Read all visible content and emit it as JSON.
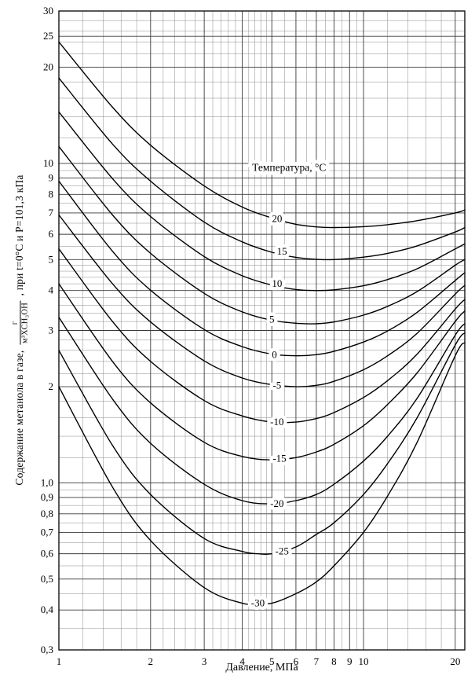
{
  "chart_data": {
    "type": "line",
    "title": "",
    "xlabel": "Давление, МПа",
    "ylabel": "Содержание метанола в газе, г/м³ХСН₃ОН, при t=0°C и P=101,3 кПа",
    "ylabel_prefix": "Содержание метанола в газе,",
    "ylabel_frac_num": "г",
    "ylabel_frac_den": "м³ХСН₃ОН",
    "ylabel_suffix": ", при t=0°C и P=101,3 кПа",
    "legend_title": "Температура, °С",
    "legend_pos": [
      5.7,
      9.7
    ],
    "x_scale": "log",
    "y_scale": "log",
    "xlim": [
      1,
      21.5
    ],
    "ylim": [
      0.3,
      30
    ],
    "grid": true,
    "colors": {
      "curve": "#000000",
      "grid_minor": "#8a8a8a",
      "grid_major": "#3a3a3a",
      "border": "#000000"
    },
    "x_ticks": [
      {
        "v": 1,
        "label": "1"
      },
      {
        "v": 2,
        "label": "2"
      },
      {
        "v": 3,
        "label": "3"
      },
      {
        "v": 4,
        "label": "4"
      },
      {
        "v": 5,
        "label": "5"
      },
      {
        "v": 6,
        "label": "6"
      },
      {
        "v": 7,
        "label": "7"
      },
      {
        "v": 8,
        "label": "8"
      },
      {
        "v": 9,
        "label": "9"
      },
      {
        "v": 10,
        "label": "10"
      },
      {
        "v": 20,
        "label": "20"
      }
    ],
    "y_ticks": [
      {
        "v": 30,
        "label": "30"
      },
      {
        "v": 25,
        "label": "25"
      },
      {
        "v": 20,
        "label": "20"
      },
      {
        "v": 10,
        "label": "10"
      },
      {
        "v": 9,
        "label": "9"
      },
      {
        "v": 8,
        "label": "8"
      },
      {
        "v": 7,
        "label": "7"
      },
      {
        "v": 6,
        "label": "6"
      },
      {
        "v": 5,
        "label": "5"
      },
      {
        "v": 4,
        "label": "4"
      },
      {
        "v": 3,
        "label": "3"
      },
      {
        "v": 2,
        "label": "2"
      },
      {
        "v": 1,
        "label": "1,0"
      },
      {
        "v": 0.9,
        "label": "0,9"
      },
      {
        "v": 0.8,
        "label": "0,8"
      },
      {
        "v": 0.7,
        "label": "0,7"
      },
      {
        "v": 0.6,
        "label": "0,6"
      },
      {
        "v": 0.5,
        "label": "0,5"
      },
      {
        "v": 0.4,
        "label": "0,4"
      },
      {
        "v": 0.3,
        "label": "0,3"
      }
    ],
    "x_minor": [
      1.2,
      1.4,
      1.6,
      1.8,
      2.2,
      2.4,
      2.6,
      2.8,
      3.2,
      3.4,
      3.6,
      3.8,
      4.2,
      4.4,
      4.6,
      4.8,
      5.5,
      6.5,
      7.5,
      8.5,
      9.5,
      12,
      14,
      16,
      18
    ],
    "y_minor": [
      0.35,
      0.45,
      0.55,
      0.65,
      0.75,
      0.85,
      0.95,
      1.2,
      1.4,
      1.6,
      1.8,
      2.2,
      2.4,
      2.6,
      2.8,
      3.2,
      3.4,
      3.6,
      3.8,
      4.2,
      4.4,
      4.6,
      4.8,
      5.5,
      6.5,
      7.5,
      8.5,
      9.5,
      12,
      14,
      16,
      18,
      22,
      24,
      26,
      28
    ],
    "series": [
      {
        "name": "20",
        "label_pos": [
          5.2,
          6.7
        ],
        "points": [
          [
            1,
            24
          ],
          [
            1.5,
            15.0
          ],
          [
            2,
            11.4
          ],
          [
            3,
            8.5
          ],
          [
            4,
            7.3
          ],
          [
            5,
            6.75
          ],
          [
            6,
            6.45
          ],
          [
            7,
            6.33
          ],
          [
            8,
            6.3
          ],
          [
            10,
            6.34
          ],
          [
            12,
            6.43
          ],
          [
            15,
            6.62
          ],
          [
            20,
            7.0
          ],
          [
            21.5,
            7.15
          ]
        ]
      },
      {
        "name": "15",
        "label_pos": [
          5.4,
          5.3
        ],
        "points": [
          [
            1,
            18.5
          ],
          [
            1.5,
            11.5
          ],
          [
            2,
            8.8
          ],
          [
            3,
            6.55
          ],
          [
            4,
            5.68
          ],
          [
            5,
            5.27
          ],
          [
            6,
            5.08
          ],
          [
            7,
            5.01
          ],
          [
            8,
            5.0
          ],
          [
            10,
            5.09
          ],
          [
            12,
            5.23
          ],
          [
            15,
            5.52
          ],
          [
            20,
            6.1
          ],
          [
            21.5,
            6.3
          ]
        ]
      },
      {
        "name": "10",
        "label_pos": [
          5.2,
          4.2
        ],
        "points": [
          [
            1,
            14.5
          ],
          [
            1.5,
            8.96
          ],
          [
            2,
            6.82
          ],
          [
            3,
            5.11
          ],
          [
            4,
            4.45
          ],
          [
            5,
            4.16
          ],
          [
            6,
            4.03
          ],
          [
            7,
            4.0
          ],
          [
            8,
            4.02
          ],
          [
            10,
            4.14
          ],
          [
            12,
            4.33
          ],
          [
            15,
            4.68
          ],
          [
            20,
            5.4
          ],
          [
            21.5,
            5.6
          ]
        ]
      },
      {
        "name": "5",
        "label_pos": [
          5.0,
          3.25
        ],
        "points": [
          [
            1,
            11.3
          ],
          [
            1.5,
            6.9
          ],
          [
            2,
            5.23
          ],
          [
            3,
            3.92
          ],
          [
            4,
            3.43
          ],
          [
            5,
            3.23
          ],
          [
            6,
            3.16
          ],
          [
            7,
            3.15
          ],
          [
            8,
            3.19
          ],
          [
            10,
            3.35
          ],
          [
            12,
            3.57
          ],
          [
            15,
            3.97
          ],
          [
            20,
            4.8
          ],
          [
            21.5,
            5.0
          ]
        ]
      },
      {
        "name": "0",
        "label_pos": [
          5.1,
          2.52
        ],
        "points": [
          [
            1,
            8.8
          ],
          [
            1.5,
            5.31
          ],
          [
            2,
            4.01
          ],
          [
            3,
            3.02
          ],
          [
            4,
            2.67
          ],
          [
            5,
            2.53
          ],
          [
            6,
            2.5
          ],
          [
            7,
            2.52
          ],
          [
            8,
            2.58
          ],
          [
            10,
            2.76
          ],
          [
            12,
            2.99
          ],
          [
            15,
            3.42
          ],
          [
            20,
            4.3
          ],
          [
            21.5,
            4.55
          ]
        ]
      },
      {
        "name": "-5",
        "label_pos": [
          5.2,
          2.02
        ],
        "points": [
          [
            1,
            6.9
          ],
          [
            1.5,
            4.2
          ],
          [
            2,
            3.19
          ],
          [
            3,
            2.41
          ],
          [
            4,
            2.13
          ],
          [
            5,
            2.03
          ],
          [
            6,
            2.0
          ],
          [
            7,
            2.02
          ],
          [
            8,
            2.08
          ],
          [
            10,
            2.26
          ],
          [
            12,
            2.5
          ],
          [
            15,
            2.94
          ],
          [
            20,
            3.9
          ],
          [
            21.5,
            4.15
          ]
        ]
      },
      {
        "name": "-10",
        "label_pos": [
          5.2,
          1.55
        ],
        "points": [
          [
            1,
            5.4
          ],
          [
            1.5,
            3.2
          ],
          [
            2,
            2.4
          ],
          [
            3,
            1.81
          ],
          [
            4,
            1.62
          ],
          [
            5,
            1.55
          ],
          [
            6,
            1.55
          ],
          [
            7,
            1.59
          ],
          [
            8,
            1.66
          ],
          [
            10,
            1.85
          ],
          [
            12,
            2.09
          ],
          [
            15,
            2.53
          ],
          [
            20,
            3.5
          ],
          [
            21.5,
            3.75
          ]
        ]
      },
      {
        "name": "-15",
        "label_pos": [
          5.3,
          1.19
        ],
        "points": [
          [
            1,
            4.2
          ],
          [
            1.5,
            2.4
          ],
          [
            2,
            1.78
          ],
          [
            3,
            1.34
          ],
          [
            4,
            1.21
          ],
          [
            5,
            1.18
          ],
          [
            6,
            1.2
          ],
          [
            7,
            1.25
          ],
          [
            8,
            1.32
          ],
          [
            10,
            1.51
          ],
          [
            12,
            1.76
          ],
          [
            15,
            2.21
          ],
          [
            20,
            3.2
          ],
          [
            21.5,
            3.45
          ]
        ]
      },
      {
        "name": "-20",
        "label_pos": [
          5.2,
          0.86
        ],
        "points": [
          [
            1,
            3.3
          ],
          [
            1.5,
            1.83
          ],
          [
            2,
            1.33
          ],
          [
            3,
            0.99
          ],
          [
            4,
            0.88
          ],
          [
            5,
            0.86
          ],
          [
            6,
            0.88
          ],
          [
            7,
            0.92
          ],
          [
            8,
            0.99
          ],
          [
            10,
            1.17
          ],
          [
            12,
            1.4
          ],
          [
            15,
            1.84
          ],
          [
            20,
            2.9
          ],
          [
            21.5,
            3.15
          ]
        ]
      },
      {
        "name": "-25",
        "label_pos": [
          5.4,
          0.61
        ],
        "points": [
          [
            1,
            2.6
          ],
          [
            1.5,
            1.31
          ],
          [
            2,
            0.92
          ],
          [
            3,
            0.67
          ],
          [
            4,
            0.61
          ],
          [
            4.5,
            0.6
          ],
          [
            5,
            0.6
          ],
          [
            6,
            0.63
          ],
          [
            7,
            0.69
          ],
          [
            8,
            0.75
          ],
          [
            10,
            0.92
          ],
          [
            12,
            1.15
          ],
          [
            15,
            1.6
          ],
          [
            20,
            2.7
          ],
          [
            21.5,
            2.95
          ]
        ]
      },
      {
        "name": "-30",
        "label_pos": [
          4.5,
          0.42
        ],
        "points": [
          [
            1,
            2.0
          ],
          [
            1.5,
            0.97
          ],
          [
            2,
            0.66
          ],
          [
            3,
            0.47
          ],
          [
            4,
            0.42
          ],
          [
            4.5,
            0.42
          ],
          [
            5,
            0.42
          ],
          [
            6,
            0.45
          ],
          [
            7,
            0.49
          ],
          [
            8,
            0.55
          ],
          [
            10,
            0.7
          ],
          [
            12,
            0.91
          ],
          [
            15,
            1.34
          ],
          [
            20,
            2.5
          ],
          [
            21.5,
            2.75
          ]
        ]
      }
    ]
  }
}
